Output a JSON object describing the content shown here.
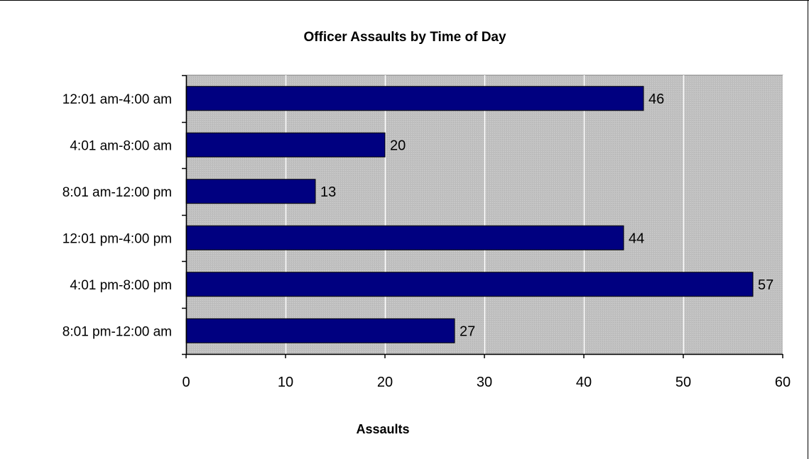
{
  "chart_data": {
    "type": "bar",
    "orientation": "horizontal",
    "title": "Officer Assaults by Time of Day",
    "xlabel": "Assaults",
    "ylabel": "",
    "categories": [
      "12:01 am-4:00 am",
      "4:01 am-8:00 am",
      "8:01 am-12:00 pm",
      "12:01 pm-4:00 pm",
      "4:01 pm-8:00 pm",
      "8:01 pm-12:00 am"
    ],
    "values": [
      46,
      20,
      13,
      44,
      57,
      27
    ],
    "xlim": [
      0,
      60
    ],
    "x_ticks": [
      "0",
      "10",
      "20",
      "30",
      "40",
      "50",
      "60"
    ],
    "data_labels": [
      "46",
      "20",
      "13",
      "44",
      "57",
      "27"
    ],
    "grid": "vertical",
    "legend": "none",
    "colors": {
      "bar_fill": "#000080",
      "bar_stroke": "#000000",
      "plot_background": "#c0c0c0",
      "gridline": "#ffffff",
      "page_background": "#ffffff"
    }
  }
}
